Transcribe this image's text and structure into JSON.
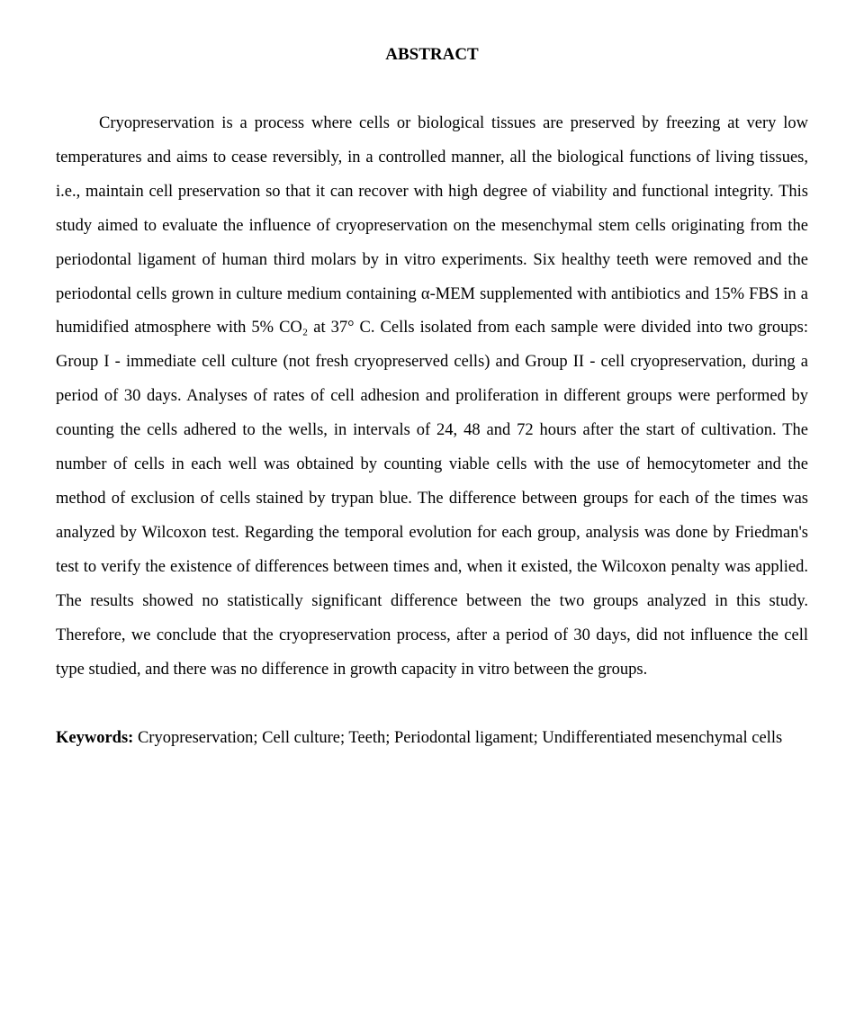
{
  "title": "ABSTRACT",
  "body": "Cryopreservation is a process where cells or biological tissues are preserved by freezing at very low temperatures and aims to cease reversibly, in a controlled manner, all the biological functions of living tissues, i.e., maintain cell preservation so that it can recover with high degree of viability and functional integrity. This study aimed to evaluate the influence of cryopreservation on the mesenchymal stem cells originating from the periodontal ligament of human third molars by in vitro experiments. Six healthy teeth were removed and the periodontal cells grown in culture medium containing α-MEM supplemented with antibiotics and 15% FBS in a humidified atmosphere with 5% CO₂ at 37° C. Cells isolated from each sample were divided into two groups: Group I - immediate cell culture (not fresh cryopreserved cells) and Group II - cell cryopreservation, during a period of 30 days. Analyses of rates of cell adhesion and proliferation in different groups were performed by counting the cells adhered to the wells, in intervals of 24, 48 and 72 hours after the start of cultivation. The number of cells in each well was obtained by counting viable cells with the use of hemocytometer and the method of exclusion of cells stained by trypan blue. The difference between groups for each of the times was analyzed by Wilcoxon test. Regarding the temporal evolution for each group, analysis was done by Friedman's test to verify the existence of differences between times and, when it existed, the Wilcoxon penalty was applied. The results showed no statistically significant difference between the two groups analyzed in this study. Therefore, we conclude that the cryopreservation process, after a period of 30 days, did not influence the cell type studied, and there was no difference in growth capacity in vitro between the groups.",
  "keywordsLabel": "Keywords:",
  "keywordsText": " Cryopreservation; Cell culture; Teeth; Periodontal ligament; Undifferentiated mesenchymal cells"
}
